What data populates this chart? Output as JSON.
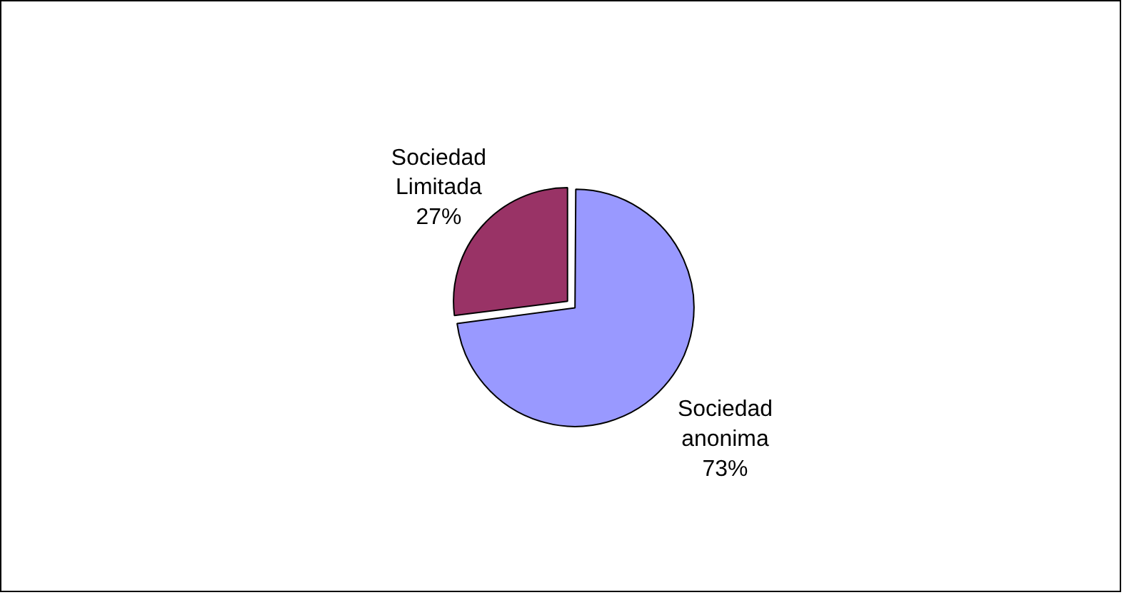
{
  "chart_data": {
    "type": "pie",
    "categories": [
      "Sociedad Limitada",
      "Sociedad anonima"
    ],
    "values": [
      27,
      73
    ],
    "colors": [
      "#993366",
      "#9999ff"
    ],
    "value_labels": [
      "27%",
      "73%"
    ],
    "legend": false
  }
}
